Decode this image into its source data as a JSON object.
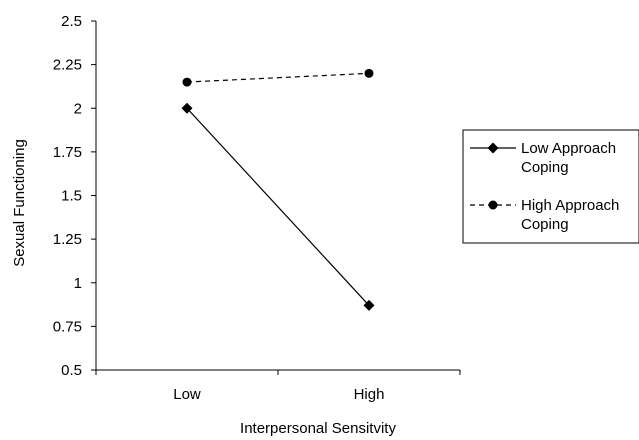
{
  "chart_data": {
    "type": "line",
    "xlabel": "Interpersonal Sensitvity",
    "ylabel": "Sexual Functioning",
    "categories": [
      "Low",
      "High"
    ],
    "ylim": [
      0.5,
      2.5
    ],
    "yticks": [
      "0.5",
      "0.75",
      "1",
      "1.25",
      "1.5",
      "1.75",
      "2",
      "2.25",
      "2.5"
    ],
    "grid": false,
    "legend_position": "right",
    "series": [
      {
        "name": "Low Approach Coping",
        "name_lines": [
          "Low Approach",
          "Coping"
        ],
        "values": [
          2.0,
          0.87
        ],
        "line_style": "solid",
        "marker": "diamond",
        "color": "#000000"
      },
      {
        "name": "High Approach Coping",
        "name_lines": [
          "High Approach",
          "Coping"
        ],
        "values": [
          2.15,
          2.2
        ],
        "line_style": "dashed",
        "marker": "circle",
        "color": "#000000"
      }
    ]
  }
}
